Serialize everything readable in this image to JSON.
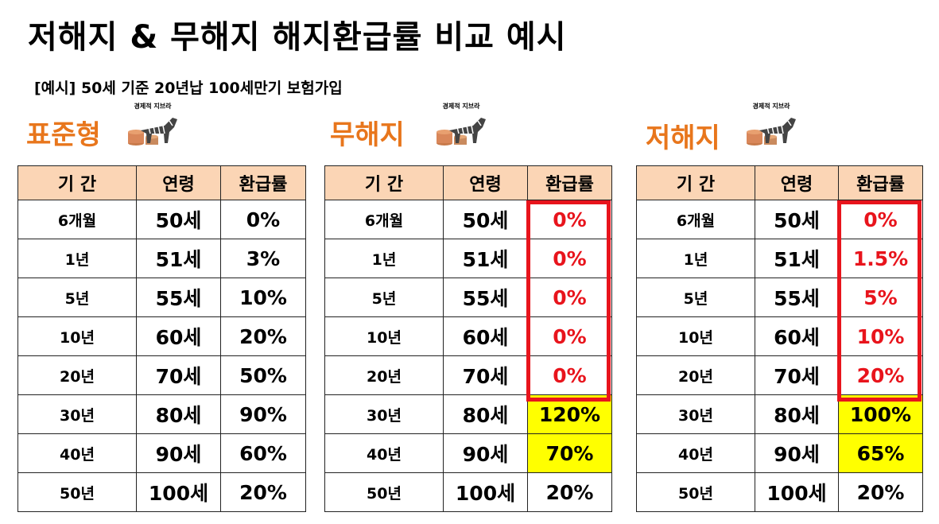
{
  "title": "저해지 & 무해지 해지환급률 비교 예시",
  "subtitle": "[예시] 50세 기준 20년납 100세만기 보험가입",
  "logo_text": "경제적 지브라",
  "columns": {
    "period": "기 간",
    "age": "연령",
    "rate": "환급률"
  },
  "tables": [
    {
      "heading": "표준형",
      "rows": [
        {
          "period": "6개월",
          "age": "50세",
          "rate": "0%"
        },
        {
          "period": "1년",
          "age": "51세",
          "rate": "3%"
        },
        {
          "period": "5년",
          "age": "55세",
          "rate": "10%"
        },
        {
          "period": "10년",
          "age": "60세",
          "rate": "20%"
        },
        {
          "period": "20년",
          "age": "70세",
          "rate": "50%"
        },
        {
          "period": "30년",
          "age": "80세",
          "rate": "90%"
        },
        {
          "period": "40년",
          "age": "90세",
          "rate": "60%"
        },
        {
          "period": "50년",
          "age": "100세",
          "rate": "20%"
        }
      ]
    },
    {
      "heading": "무해지",
      "rows": [
        {
          "period": "6개월",
          "age": "50세",
          "rate": "0%"
        },
        {
          "period": "1년",
          "age": "51세",
          "rate": "0%"
        },
        {
          "period": "5년",
          "age": "55세",
          "rate": "0%"
        },
        {
          "period": "10년",
          "age": "60세",
          "rate": "0%"
        },
        {
          "period": "20년",
          "age": "70세",
          "rate": "0%"
        },
        {
          "period": "30년",
          "age": "80세",
          "rate": "120%"
        },
        {
          "period": "40년",
          "age": "90세",
          "rate": "70%"
        },
        {
          "period": "50년",
          "age": "100세",
          "rate": "20%"
        }
      ]
    },
    {
      "heading": "저해지",
      "rows": [
        {
          "period": "6개월",
          "age": "50세",
          "rate": "0%"
        },
        {
          "period": "1년",
          "age": "51세",
          "rate": "1.5%"
        },
        {
          "period": "5년",
          "age": "55세",
          "rate": "5%"
        },
        {
          "period": "10년",
          "age": "60세",
          "rate": "10%"
        },
        {
          "period": "20년",
          "age": "70세",
          "rate": "20%"
        },
        {
          "period": "30년",
          "age": "80세",
          "rate": "100%"
        },
        {
          "period": "40년",
          "age": "90세",
          "rate": "65%"
        },
        {
          "period": "50년",
          "age": "100세",
          "rate": "20%"
        }
      ]
    }
  ],
  "colors": {
    "heading": "#e8761c",
    "header_bg": "#fbd5b5",
    "highlight_red": "#e8141c",
    "highlight_yellow": "#ffff00"
  }
}
